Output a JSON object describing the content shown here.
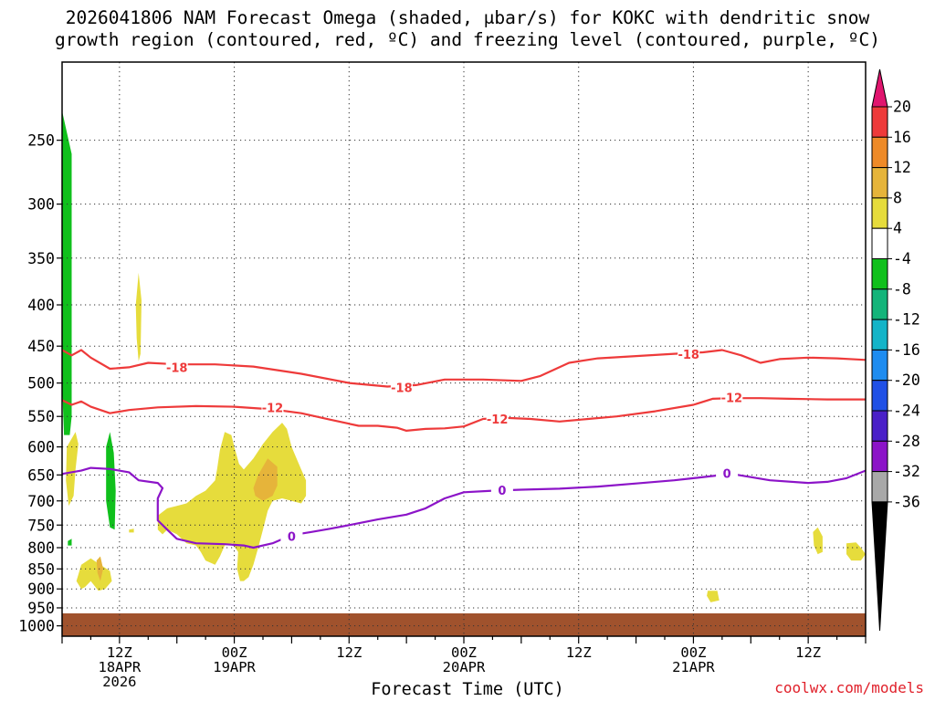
{
  "title": {
    "line1": "2026041806 NAM Forecast Omega (shaded, μbar/s) for KOKC with dendritic snow",
    "line2": "growth region (contoured, red, ºC) and freezing level (contoured, purple, ºC)"
  },
  "credit": "coolwx.com/models",
  "chart_data": {
    "type": "contour",
    "title": "2026041806 NAM Forecast Omega (shaded, μbar/s) for KOKC with dendritic snow growth region (contoured, red, ºC) and freezing level (contoured, purple, ºC)",
    "xlabel": "Forecast Time (UTC)",
    "ylabel": "",
    "x_ticks": [
      {
        "hour": 6,
        "lines": [
          "12Z",
          "18APR",
          "2026"
        ]
      },
      {
        "hour": 18,
        "lines": [
          "00Z",
          "19APR"
        ]
      },
      {
        "hour": 30,
        "lines": [
          "12Z"
        ]
      },
      {
        "hour": 42,
        "lines": [
          "00Z",
          "20APR"
        ]
      },
      {
        "hour": 54,
        "lines": [
          "12Z"
        ]
      },
      {
        "hour": 66,
        "lines": [
          "00Z",
          "21APR"
        ]
      },
      {
        "hour": 78,
        "lines": [
          "12Z"
        ]
      }
    ],
    "xlim": [
      0,
      84
    ],
    "y_ticks": [
      250,
      300,
      350,
      400,
      450,
      500,
      550,
      600,
      650,
      700,
      750,
      800,
      850,
      900,
      950,
      1000
    ],
    "ylim": [
      200,
      1030
    ],
    "y_scale": "log-pressure",
    "grid": true,
    "colorbar": {
      "labels": [
        "20",
        "16",
        "12",
        "8",
        "4",
        "-4",
        "-8",
        "-12",
        "-16",
        "-20",
        "-24",
        "-28",
        "-32",
        "-36"
      ],
      "colors": [
        "#e0156e",
        "#ee3a3a",
        "#ee8a28",
        "#e6b43a",
        "#e6dc3c",
        "#ffffff",
        "#10c01c",
        "#14b47a",
        "#14b4c8",
        "#1e8cf0",
        "#2050e6",
        "#4a20c8",
        "#8c14c8",
        "#a8a8a8",
        "#000000"
      ]
    },
    "series": [
      {
        "name": "-18",
        "color": "#ee3a3a",
        "points": [
          [
            0,
            455
          ],
          [
            1,
            462
          ],
          [
            2,
            455
          ],
          [
            3,
            465
          ],
          [
            5,
            480
          ],
          [
            7,
            478
          ],
          [
            9,
            472
          ],
          [
            12,
            474
          ],
          [
            16,
            474
          ],
          [
            20,
            477
          ],
          [
            25,
            487
          ],
          [
            30,
            500
          ],
          [
            34,
            505
          ],
          [
            37,
            503
          ],
          [
            40,
            495
          ],
          [
            44,
            495
          ],
          [
            48,
            497
          ],
          [
            50,
            490
          ],
          [
            53,
            472
          ],
          [
            56,
            466
          ],
          [
            60,
            463
          ],
          [
            64,
            460
          ],
          [
            67,
            458
          ],
          [
            69,
            455
          ],
          [
            71,
            462
          ],
          [
            73,
            472
          ],
          [
            75,
            467
          ],
          [
            78,
            465
          ],
          [
            81,
            466
          ],
          [
            84,
            468
          ]
        ]
      },
      {
        "name": "-12",
        "color": "#ee3a3a",
        "points": [
          [
            0,
            525
          ],
          [
            1,
            532
          ],
          [
            2,
            527
          ],
          [
            3,
            535
          ],
          [
            5,
            545
          ],
          [
            7,
            540
          ],
          [
            10,
            536
          ],
          [
            14,
            534
          ],
          [
            18,
            535
          ],
          [
            22,
            539
          ],
          [
            25,
            545
          ],
          [
            28,
            555
          ],
          [
            31,
            565
          ],
          [
            33,
            565
          ],
          [
            35,
            568
          ],
          [
            36,
            573
          ],
          [
            38,
            570
          ],
          [
            40,
            569
          ],
          [
            42,
            566
          ],
          [
            44,
            554
          ],
          [
            46,
            552
          ],
          [
            49,
            554
          ],
          [
            52,
            558
          ],
          [
            55,
            554
          ],
          [
            58,
            550
          ],
          [
            62,
            542
          ],
          [
            66,
            532
          ],
          [
            68,
            523
          ],
          [
            70,
            522
          ],
          [
            73,
            522
          ],
          [
            76,
            523
          ],
          [
            80,
            524
          ],
          [
            84,
            524
          ]
        ]
      },
      {
        "name": "0",
        "color": "#8c14c8",
        "points": [
          [
            0,
            648
          ],
          [
            2,
            642
          ],
          [
            3,
            637
          ],
          [
            5,
            639
          ],
          [
            7,
            645
          ],
          [
            8,
            660
          ],
          [
            10,
            665
          ],
          [
            10.5,
            675
          ],
          [
            10,
            695
          ],
          [
            10,
            740
          ],
          [
            11,
            760
          ],
          [
            12,
            780
          ],
          [
            14,
            790
          ],
          [
            17,
            792
          ],
          [
            19,
            795
          ],
          [
            20,
            800
          ],
          [
            22,
            790
          ],
          [
            24,
            772
          ],
          [
            26,
            765
          ],
          [
            28,
            758
          ],
          [
            30,
            750
          ],
          [
            33,
            738
          ],
          [
            36,
            728
          ],
          [
            38,
            715
          ],
          [
            40,
            695
          ],
          [
            42,
            683
          ],
          [
            45,
            680
          ],
          [
            48,
            678
          ],
          [
            52,
            676
          ],
          [
            56,
            672
          ],
          [
            60,
            666
          ],
          [
            64,
            660
          ],
          [
            66,
            656
          ],
          [
            68,
            652
          ],
          [
            70,
            648
          ],
          [
            74,
            660
          ],
          [
            78,
            665
          ],
          [
            80,
            663
          ],
          [
            82,
            656
          ],
          [
            84,
            642
          ]
        ]
      }
    ],
    "omega_shaded": [
      {
        "color": "#10c01c",
        "label": "-8 to -4",
        "points": [
          [
            0,
            230
          ],
          [
            1,
            260
          ],
          [
            1,
            350
          ],
          [
            1,
            450
          ],
          [
            1,
            550
          ],
          [
            0.8,
            580
          ],
          [
            0.2,
            580
          ],
          [
            0,
            500
          ]
        ]
      },
      {
        "color": "#10c01c",
        "label": "-8 to -4",
        "points": [
          [
            4.6,
            600
          ],
          [
            5,
            575
          ],
          [
            5.4,
            610
          ],
          [
            5.6,
            680
          ],
          [
            5.5,
            760
          ],
          [
            5,
            755
          ],
          [
            4.6,
            700
          ]
        ]
      },
      {
        "color": "#10c01c",
        "label": "-8 to -4",
        "points": [
          [
            0.6,
            785
          ],
          [
            1,
            780
          ],
          [
            1,
            795
          ],
          [
            0.6,
            795
          ]
        ]
      },
      {
        "color": "#e6dc3c",
        "label": "4 to 8",
        "points": [
          [
            0.5,
            600
          ],
          [
            1.4,
            575
          ],
          [
            1.7,
            595
          ],
          [
            1.4,
            640
          ],
          [
            1.2,
            690
          ],
          [
            0.7,
            710
          ],
          [
            0.4,
            660
          ]
        ]
      },
      {
        "color": "#e6dc3c",
        "label": "4 to 8",
        "points": [
          [
            7.7,
            400
          ],
          [
            8,
            365
          ],
          [
            8.3,
            395
          ],
          [
            8.2,
            460
          ],
          [
            8,
            470
          ],
          [
            7.8,
            440
          ]
        ]
      },
      {
        "color": "#e6dc3c",
        "label": "4 to 8",
        "points": [
          [
            1.5,
            880
          ],
          [
            2,
            840
          ],
          [
            3,
            825
          ],
          [
            4,
            840
          ],
          [
            5,
            855
          ],
          [
            5.2,
            880
          ],
          [
            4.5,
            900
          ],
          [
            3.8,
            905
          ],
          [
            3,
            880
          ],
          [
            2.4,
            895
          ],
          [
            2,
            900
          ]
        ]
      },
      {
        "color": "#e6dc3c",
        "label": "4 to 8",
        "points": [
          [
            10,
            730
          ],
          [
            11,
            715
          ],
          [
            12,
            710
          ],
          [
            13,
            705
          ],
          [
            14,
            690
          ],
          [
            15,
            680
          ],
          [
            16,
            660
          ],
          [
            16.2,
            640
          ],
          [
            16.5,
            605
          ],
          [
            17,
            575
          ],
          [
            17.7,
            580
          ],
          [
            18,
            600
          ],
          [
            18.5,
            630
          ],
          [
            19,
            640
          ],
          [
            20,
            620
          ],
          [
            21,
            595
          ],
          [
            22,
            575
          ],
          [
            23,
            560
          ],
          [
            23.5,
            570
          ],
          [
            24,
            600
          ],
          [
            25,
            640
          ],
          [
            25.5,
            660
          ],
          [
            25.5,
            690
          ],
          [
            25,
            705
          ],
          [
            24,
            700
          ],
          [
            23,
            695
          ],
          [
            22,
            700
          ],
          [
            21.5,
            720
          ],
          [
            21,
            760
          ],
          [
            20.5,
            800
          ],
          [
            20,
            840
          ],
          [
            19.5,
            870
          ],
          [
            19,
            880
          ],
          [
            18.6,
            880
          ],
          [
            18.3,
            850
          ],
          [
            18.4,
            810
          ],
          [
            17.8,
            790
          ],
          [
            17,
            795
          ],
          [
            16.5,
            820
          ],
          [
            16,
            840
          ],
          [
            15,
            830
          ],
          [
            14.5,
            810
          ],
          [
            14,
            795
          ],
          [
            13,
            790
          ],
          [
            12,
            770
          ],
          [
            11,
            760
          ],
          [
            10.5,
            770
          ],
          [
            10,
            760
          ]
        ]
      },
      {
        "color": "#e6dc3c",
        "label": "4 to 8",
        "points": [
          [
            7,
            760
          ],
          [
            7.5,
            758
          ],
          [
            7.5,
            766
          ],
          [
            7,
            766
          ]
        ]
      },
      {
        "color": "#e6dc3c",
        "label": "4 to 8",
        "points": [
          [
            78.5,
            765
          ],
          [
            79,
            755
          ],
          [
            79.5,
            775
          ],
          [
            79.5,
            810
          ],
          [
            79,
            815
          ],
          [
            78.6,
            795
          ]
        ]
      },
      {
        "color": "#e6dc3c",
        "label": "4 to 8",
        "points": [
          [
            82,
            790
          ],
          [
            83,
            788
          ],
          [
            83.5,
            800
          ],
          [
            84,
            815
          ],
          [
            83.5,
            830
          ],
          [
            82.5,
            830
          ],
          [
            82,
            815
          ]
        ]
      },
      {
        "color": "#e6dc3c",
        "label": "4 to 8",
        "points": [
          [
            67.5,
            905
          ],
          [
            68.5,
            905
          ],
          [
            68.7,
            930
          ],
          [
            67.8,
            935
          ],
          [
            67.4,
            918
          ]
        ]
      },
      {
        "color": "#e6b43a",
        "label": "8 to 12",
        "points": [
          [
            20,
            675
          ],
          [
            20.5,
            650
          ],
          [
            21.5,
            620
          ],
          [
            22.5,
            635
          ],
          [
            22.5,
            670
          ],
          [
            22,
            690
          ],
          [
            21,
            700
          ],
          [
            20.2,
            690
          ]
        ]
      },
      {
        "color": "#e6b43a",
        "label": "8 to 12",
        "points": [
          [
            3.6,
            830
          ],
          [
            4,
            820
          ],
          [
            4.3,
            850
          ],
          [
            4,
            880
          ],
          [
            3.7,
            860
          ]
        ]
      }
    ],
    "terrain": {
      "color": "#a0522d",
      "top_pressure": 965
    },
    "contour_labels": [
      {
        "text": "-18",
        "color": "#ee3a3a",
        "x": 12,
        "y": 479
      },
      {
        "text": "-18",
        "color": "#ee3a3a",
        "x": 35.5,
        "y": 507
      },
      {
        "text": "-18",
        "color": "#ee3a3a",
        "x": 65.5,
        "y": 461
      },
      {
        "text": "-12",
        "color": "#ee3a3a",
        "x": 22,
        "y": 537
      },
      {
        "text": "-12",
        "color": "#ee3a3a",
        "x": 45.5,
        "y": 555
      },
      {
        "text": "-12",
        "color": "#ee3a3a",
        "x": 70,
        "y": 522
      },
      {
        "text": "0",
        "color": "#8c14c8",
        "x": 24,
        "y": 775
      },
      {
        "text": "0",
        "color": "#8c14c8",
        "x": 46,
        "y": 680
      },
      {
        "text": "0",
        "color": "#8c14c8",
        "x": 69.5,
        "y": 648
      }
    ]
  }
}
